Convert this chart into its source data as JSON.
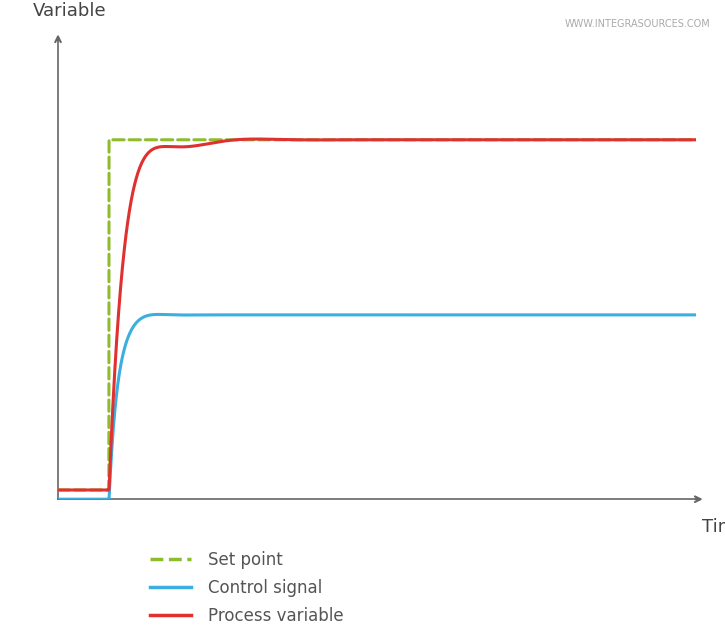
{
  "title": "",
  "ylabel": "Variable",
  "xlabel": "Time",
  "watermark": "WWW.INTEGRASOURCES.COM",
  "background_color": "#ffffff",
  "grid_color": "#cccccc",
  "axis_color": "#666666",
  "set_point_color": "#8fbc2e",
  "control_signal_color": "#3aafe0",
  "process_variable_color": "#e03030",
  "legend_labels": [
    "Set point",
    "Control signal",
    "Process variable"
  ],
  "xlim": [
    0,
    10
  ],
  "ylim": [
    0.0,
    1.0
  ],
  "t_step": 0.8,
  "sp_level": 0.78,
  "pv_init": 0.02,
  "cs_init": 0.0,
  "cs_steady": 0.4,
  "pv_steady": 0.78,
  "figsize": [
    7.25,
    6.4
  ],
  "dpi": 100
}
